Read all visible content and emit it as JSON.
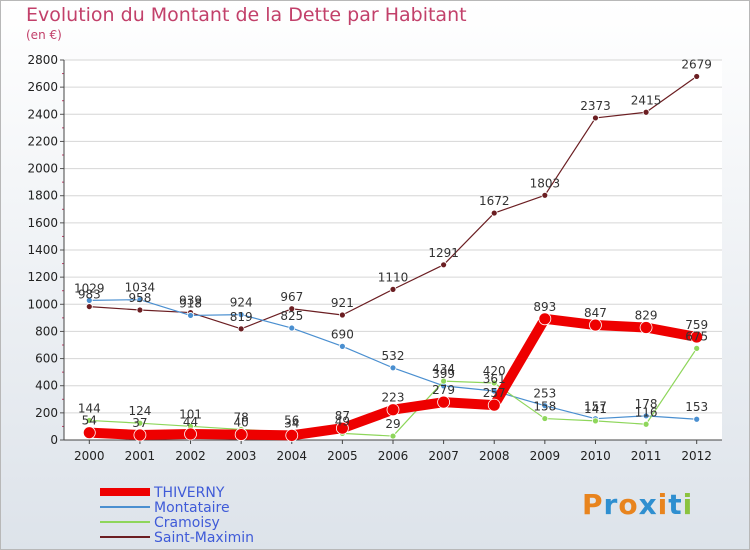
{
  "title": "Evolution du Montant de la Dette par Habitant",
  "subtitle": "(en €)",
  "logo": {
    "text": "Proxiti",
    "colors": [
      "#e8841e",
      "#2f8fd0",
      "#e8841e",
      "#2f8fd0",
      "#e8841e",
      "#2f8fd0",
      "#8bc33f"
    ]
  },
  "chart_data": {
    "type": "line",
    "title": "Evolution du Montant de la Dette par Habitant",
    "ylabel": "(en €)",
    "ylim": [
      0,
      2800
    ],
    "yticks": [
      0,
      200,
      400,
      600,
      800,
      1000,
      1200,
      1400,
      1600,
      1800,
      2000,
      2200,
      2400,
      2600,
      2800
    ],
    "x": [
      "2000",
      "2001",
      "2002",
      "2003",
      "2004",
      "2005",
      "2006",
      "2007",
      "2008",
      "2009",
      "2010",
      "2011",
      "2012"
    ],
    "series": [
      {
        "name": "Saint-Maximin",
        "color": "#6b1e22",
        "values": [
          983,
          958,
          939,
          819,
          967,
          921,
          1110,
          1291,
          1672,
          1803,
          2373,
          2415,
          2679
        ]
      },
      {
        "name": "Montataire",
        "color": "#4a8fd0",
        "values": [
          1029,
          1034,
          918,
          924,
          825,
          690,
          532,
          399,
          361,
          253,
          157,
          178,
          153
        ]
      },
      {
        "name": "Cramoisy",
        "color": "#8ed65b",
        "values": [
          144,
          124,
          101,
          78,
          56,
          49,
          29,
          434,
          420,
          158,
          141,
          116,
          675
        ]
      },
      {
        "name": "THIVERNY",
        "color": "#ee0000",
        "values": [
          54,
          37,
          44,
          40,
          34,
          87,
          223,
          279,
          257,
          893,
          847,
          829,
          759
        ]
      }
    ],
    "legend": [
      "THIVERNY",
      "Montataire",
      "Cramoisy",
      "Saint-Maximin"
    ]
  }
}
